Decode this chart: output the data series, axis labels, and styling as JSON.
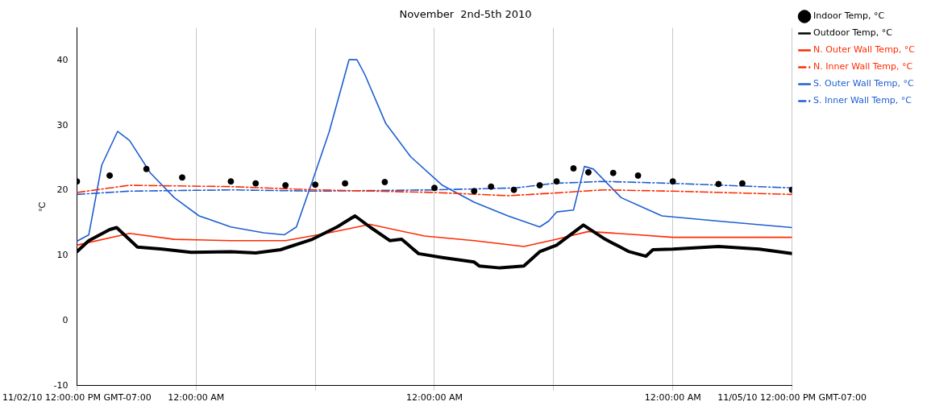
{
  "chart_data": {
    "type": "line",
    "title": "November  2nd-5th 2010",
    "ylabel": "°C",
    "xlim": [
      "2010-11-02T12:00",
      "2010-11-05T12:00"
    ],
    "xticks": [
      {
        "value": "2010-11-02T12:00",
        "label": "11/02/10 12:00:00 PM GMT-07:00"
      },
      {
        "value": "2010-11-03T00:00",
        "label": "12:00:00 AM"
      },
      {
        "value": "2010-11-03T12:00",
        "label": null
      },
      {
        "value": "2010-11-04T00:00",
        "label": "12:00:00 AM"
      },
      {
        "value": "2010-11-04T12:00",
        "label": null
      },
      {
        "value": "2010-11-05T00:00",
        "label": "12:00:00 AM"
      },
      {
        "value": "2010-11-05T12:00",
        "label": "11/05/10 12:00:00 PM GMT-07:00"
      }
    ],
    "ylim": [
      -10,
      45
    ],
    "yticks": [
      -10,
      0,
      10,
      20,
      30,
      40
    ],
    "grid": "x",
    "legend": "top right",
    "series": [
      {
        "name": "Indoor Temp, °C",
        "type": "scatter",
        "marker": "circle",
        "color": "#000000",
        "x": [
          "2010-11-02T12:00",
          "2010-11-02T15:18",
          "2010-11-02T19:00",
          "2010-11-02T22:36",
          "2010-11-03T03:30",
          "2010-11-03T06:00",
          "2010-11-03T09:00",
          "2010-11-03T12:00",
          "2010-11-03T15:00",
          "2010-11-03T19:00",
          "2010-11-04T00:00",
          "2010-11-04T04:00",
          "2010-11-04T05:42",
          "2010-11-04T08:00",
          "2010-11-04T10:36",
          "2010-11-04T12:18",
          "2010-11-04T14:00",
          "2010-11-04T15:30",
          "2010-11-04T18:00",
          "2010-11-04T20:30",
          "2010-11-05T00:00",
          "2010-11-05T04:36",
          "2010-11-05T07:00",
          "2010-11-05T12:00"
        ],
        "values": [
          21.4,
          22.3,
          23.3,
          22,
          21.4,
          21.1,
          20.8,
          20.9,
          21.1,
          21.3,
          20.4,
          19.9,
          20.6,
          20.1,
          20.8,
          21.4,
          23.4,
          22.8,
          22.7,
          22.3,
          21.4,
          21,
          21.1,
          20.1
        ]
      },
      {
        "name": "Outdoor Temp, °C",
        "line_style": "solid",
        "color": "#000000",
        "x": [
          "2010-11-02T12:00",
          "2010-11-02T13:12",
          "2010-11-02T15:18",
          "2010-11-02T16:00",
          "2010-11-02T18:06",
          "2010-11-02T20:36",
          "2010-11-02T23:30",
          "2010-11-03T03:30",
          "2010-11-03T06:00",
          "2010-11-03T08:30",
          "2010-11-03T11:42",
          "2010-11-03T14:12",
          "2010-11-03T16:00",
          "2010-11-03T17:30",
          "2010-11-03T19:30",
          "2010-11-03T20:42",
          "2010-11-03T22:24",
          "2010-11-04T00:48",
          "2010-11-04T04:00",
          "2010-11-04T04:30",
          "2010-11-04T06:36",
          "2010-11-04T09:00",
          "2010-11-04T10:36",
          "2010-11-04T12:18",
          "2010-11-04T15:00",
          "2010-11-04T17:12",
          "2010-11-04T19:36",
          "2010-11-04T21:18",
          "2010-11-04T22:00",
          "2010-11-05T00:00",
          "2010-11-05T04:36",
          "2010-11-05T08:42",
          "2010-11-05T12:00"
        ],
        "values": [
          10.6,
          12.3,
          14,
          14.3,
          11.3,
          11,
          10.5,
          10.6,
          10.4,
          10.9,
          12.5,
          14.4,
          16.1,
          14.4,
          12.3,
          12.5,
          10.3,
          9.7,
          9,
          8.4,
          8.1,
          8.4,
          10.6,
          11.6,
          14.7,
          12.5,
          10.6,
          9.9,
          10.9,
          11,
          11.4,
          11,
          10.3
        ]
      },
      {
        "name": "N. Outer Wall Temp, °C",
        "line_style": "solid",
        "color": "#ff2a00",
        "x": [
          "2010-11-02T12:00",
          "2010-11-02T17:18",
          "2010-11-02T21:48",
          "2010-11-03T03:30",
          "2010-11-03T09:00",
          "2010-11-03T13:24",
          "2010-11-03T17:30",
          "2010-11-03T23:00",
          "2010-11-04T04:00",
          "2010-11-04T09:00",
          "2010-11-04T12:18",
          "2010-11-04T15:30",
          "2010-11-04T20:30",
          "2010-11-05T00:00",
          "2010-11-05T12:00"
        ],
        "values": [
          11.6,
          13.4,
          12.5,
          12.3,
          12.3,
          13.5,
          14.8,
          13,
          12.3,
          11.4,
          12.5,
          13.7,
          13.2,
          12.8,
          12.8
        ]
      },
      {
        "name": "N. Inner Wall Temp, °C",
        "line_style": "dashed",
        "color": "#ff2a00",
        "x": [
          "2010-11-02T12:00",
          "2010-11-02T17:18",
          "2010-11-03T03:30",
          "2010-11-03T12:00",
          "2010-11-04T00:00",
          "2010-11-04T07:24",
          "2010-11-04T12:00",
          "2010-11-04T17:00",
          "2010-11-05T00:00",
          "2010-11-05T12:00"
        ],
        "values": [
          19.7,
          20.8,
          20.6,
          20.1,
          19.7,
          19.2,
          19.6,
          20.1,
          19.9,
          19.4
        ]
      },
      {
        "name": "S. Outer Wall Temp, °C",
        "line_style": "solid",
        "color": "#1f5fd0",
        "x": [
          "2010-11-02T12:00",
          "2010-11-02T13:12",
          "2010-11-02T14:30",
          "2010-11-02T16:06",
          "2010-11-02T17:18",
          "2010-11-02T19:24",
          "2010-11-02T21:48",
          "2010-11-03T00:18",
          "2010-11-03T03:30",
          "2010-11-03T06:48",
          "2010-11-03T08:54",
          "2010-11-03T10:06",
          "2010-11-03T11:42",
          "2010-11-03T13:24",
          "2010-11-03T15:24",
          "2010-11-03T16:12",
          "2010-11-03T17:00",
          "2010-11-03T19:06",
          "2010-11-03T21:36",
          "2010-11-04T00:48",
          "2010-11-04T04:00",
          "2010-11-04T07:24",
          "2010-11-04T10:36",
          "2010-11-04T11:30",
          "2010-11-04T12:18",
          "2010-11-04T14:00",
          "2010-11-04T15:06",
          "2010-11-04T16:00",
          "2010-11-04T18:48",
          "2010-11-04T22:54",
          "2010-11-05T04:36",
          "2010-11-05T12:00"
        ],
        "values": [
          12.2,
          13.2,
          23.9,
          29.1,
          27.7,
          22.7,
          18.9,
          16.1,
          14.4,
          13.5,
          13.2,
          14.4,
          21.4,
          29,
          40.1,
          40.1,
          37.8,
          30.3,
          25.2,
          20.8,
          18.2,
          16.1,
          14.4,
          15.3,
          16.7,
          17,
          23.7,
          23.3,
          18.9,
          16.1,
          15.3,
          14.3
        ]
      },
      {
        "name": "S. Inner Wall Temp, °C",
        "line_style": "dashed",
        "color": "#1f5fd0",
        "x": [
          "2010-11-02T12:00",
          "2010-11-02T17:18",
          "2010-11-03T03:30",
          "2010-11-03T12:00",
          "2010-11-04T00:00",
          "2010-11-04T08:12",
          "2010-11-04T12:00",
          "2010-11-04T17:00",
          "2010-11-05T00:00",
          "2010-11-05T12:00"
        ],
        "values": [
          19.4,
          19.9,
          20.1,
          19.9,
          20.1,
          20.4,
          21.1,
          21.4,
          21.1,
          20.4
        ]
      }
    ]
  }
}
